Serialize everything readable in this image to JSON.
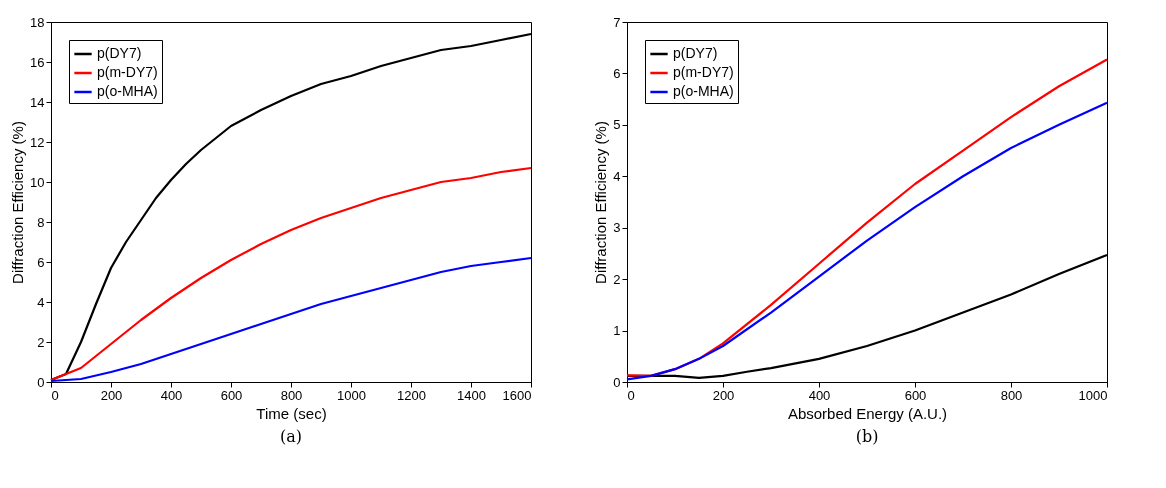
{
  "chart_data": [
    {
      "type": "line",
      "xlabel": "Time (sec)",
      "ylabel": "Diffraction Efficiency (%)",
      "annotations": [
        "(a)"
      ],
      "legend": "top left",
      "grid": false,
      "xlim": [
        0,
        1600
      ],
      "ylim": [
        0,
        18
      ],
      "xticks": [
        0,
        200,
        400,
        600,
        800,
        1000,
        1200,
        1400,
        1600
      ],
      "yticks": [
        0,
        2,
        4,
        6,
        8,
        10,
        12,
        14,
        16,
        18
      ],
      "series": [
        {
          "name": "p(DY7)",
          "color": "#000000",
          "x": [
            0,
            50,
            100,
            150,
            200,
            250,
            300,
            350,
            400,
            450,
            500,
            550,
            600,
            700,
            800,
            900,
            1000,
            1100,
            1200,
            1300,
            1400,
            1500,
            1600
          ],
          "values": [
            0.1,
            0.4,
            2.0,
            3.9,
            5.7,
            7.0,
            8.1,
            9.2,
            10.1,
            10.9,
            11.6,
            12.2,
            12.8,
            13.6,
            14.3,
            14.9,
            15.3,
            15.8,
            16.2,
            16.6,
            16.8,
            17.1,
            17.4
          ]
        },
        {
          "name": "p(m-DY7)",
          "color": "#ff0000",
          "x": [
            0,
            100,
            200,
            300,
            400,
            500,
            600,
            700,
            800,
            900,
            1000,
            1100,
            1200,
            1300,
            1400,
            1500,
            1600
          ],
          "values": [
            0.1,
            0.7,
            1.9,
            3.1,
            4.2,
            5.2,
            6.1,
            6.9,
            7.6,
            8.2,
            8.7,
            9.2,
            9.6,
            10.0,
            10.2,
            10.5,
            10.7
          ]
        },
        {
          "name": "p(o-MHA)",
          "color": "#0000ff",
          "x": [
            0,
            100,
            200,
            300,
            400,
            500,
            600,
            700,
            800,
            900,
            1000,
            1100,
            1200,
            1300,
            1400,
            1500,
            1600
          ],
          "values": [
            0.05,
            0.15,
            0.5,
            0.9,
            1.4,
            1.9,
            2.4,
            2.9,
            3.4,
            3.9,
            4.3,
            4.7,
            5.1,
            5.5,
            5.8,
            6.0,
            6.2
          ]
        }
      ]
    },
    {
      "type": "line",
      "xlabel": "Absorbed Energy (A.U.)",
      "ylabel": "Diffraction Efficiency (%)",
      "annotations": [
        "(b)"
      ],
      "legend": "top left",
      "grid": false,
      "xlim": [
        0,
        1000
      ],
      "ylim": [
        0,
        7
      ],
      "xticks": [
        0,
        200,
        400,
        600,
        800,
        1000
      ],
      "yticks": [
        0,
        1,
        2,
        3,
        4,
        5,
        6,
        7
      ],
      "series": [
        {
          "name": "p(DY7)",
          "color": "#000000",
          "x": [
            0,
            100,
            150,
            200,
            250,
            300,
            400,
            500,
            600,
            700,
            800,
            900,
            1000
          ],
          "values": [
            0.12,
            0.12,
            0.08,
            0.12,
            0.2,
            0.27,
            0.45,
            0.7,
            1.0,
            1.35,
            1.7,
            2.1,
            2.47
          ]
        },
        {
          "name": "p(m-DY7)",
          "color": "#ff0000",
          "x": [
            0,
            50,
            100,
            150,
            200,
            300,
            400,
            500,
            600,
            700,
            800,
            900,
            1000
          ],
          "values": [
            0.13,
            0.12,
            0.25,
            0.45,
            0.75,
            1.5,
            2.3,
            3.1,
            3.85,
            4.5,
            5.15,
            5.75,
            6.27
          ]
        },
        {
          "name": "p(o-MHA)",
          "color": "#0000ff",
          "x": [
            0,
            50,
            100,
            150,
            200,
            300,
            400,
            500,
            600,
            700,
            800,
            900,
            1000
          ],
          "values": [
            0.05,
            0.12,
            0.25,
            0.45,
            0.7,
            1.35,
            2.05,
            2.75,
            3.4,
            4.0,
            4.55,
            5.0,
            5.43
          ]
        }
      ]
    }
  ]
}
